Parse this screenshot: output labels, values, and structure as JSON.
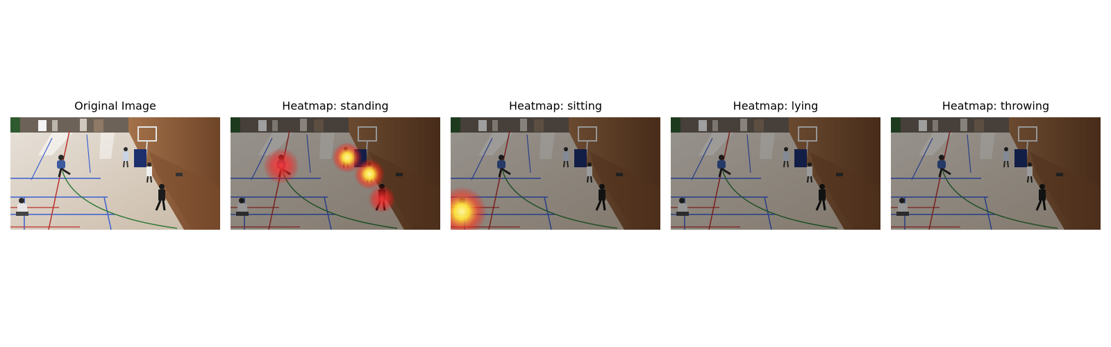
{
  "panels": [
    {
      "title": "Original Image",
      "overlay": "none"
    },
    {
      "title": "Heatmap: standing",
      "overlay": "heatmap"
    },
    {
      "title": "Heatmap: sitting",
      "overlay": "heatmap"
    },
    {
      "title": "Heatmap: lying",
      "overlay": "heatmap"
    },
    {
      "title": "Heatmap: throwing",
      "overlay": "heatmap"
    }
  ],
  "colors": {
    "floor": "#d9cfc4",
    "wall_wood": "#8a5a35",
    "court_blue": "#3a5fd0",
    "court_red": "#b8312b",
    "court_green": "#2f7a3a",
    "heat_hot": "#ffee55",
    "heat_mid": "#ff2a2a",
    "dim_overlay": "#000000"
  }
}
